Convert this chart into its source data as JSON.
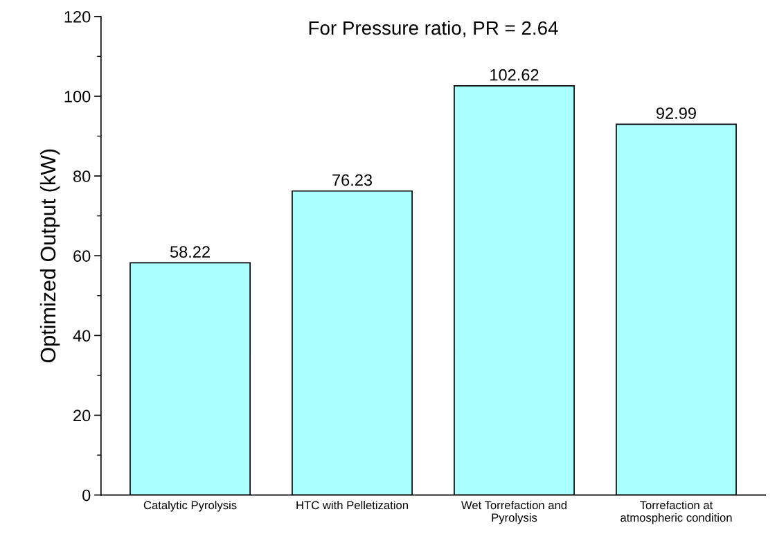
{
  "chart_data": {
    "type": "bar",
    "title": "For Pressure ratio, PR = 2.64",
    "ylabel": "Optimized Output (kW)",
    "categories": [
      "Catalytic Pyrolysis",
      "HTC with Pelletization",
      "Wet Torrefaction and\nPyrolysis",
      "Torrefaction at\natmospheric condition"
    ],
    "values": [
      58.22,
      76.23,
      102.62,
      92.99
    ],
    "color": "#aaffff",
    "ylim": [
      0,
      120
    ],
    "yticks": [
      0,
      20,
      40,
      60,
      80,
      100,
      120
    ],
    "data_labels": true,
    "grid": false
  }
}
